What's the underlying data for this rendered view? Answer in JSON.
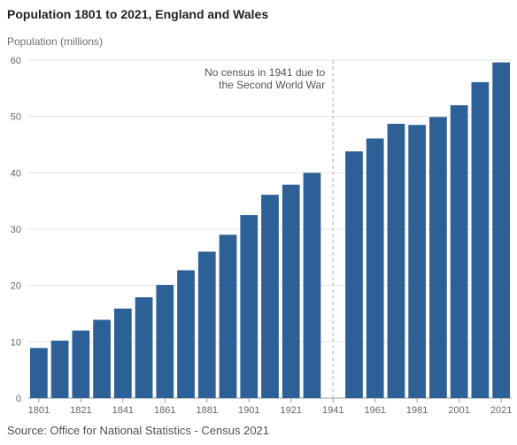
{
  "chart_data": {
    "type": "bar",
    "title": "Population 1801 to 2021, England and Wales",
    "ylabel": "Population (millions)",
    "xlabel": "",
    "ylim": [
      0,
      60
    ],
    "yticks": [
      0,
      10,
      20,
      30,
      40,
      50,
      60
    ],
    "grid": true,
    "color": "#2c6096",
    "categories": [
      "1801",
      "1811",
      "1821",
      "1831",
      "1841",
      "1851",
      "1861",
      "1871",
      "1881",
      "1891",
      "1901",
      "1911",
      "1921",
      "1931",
      "1941",
      "1951",
      "1961",
      "1971",
      "1981",
      "1991",
      "2001",
      "2011",
      "2021"
    ],
    "x_tick_labels": [
      "1801",
      "1821",
      "1841",
      "1861",
      "1881",
      "1901",
      "1921",
      "1941",
      "1961",
      "1981",
      "2001",
      "2021"
    ],
    "values": [
      8.9,
      10.2,
      12.0,
      13.9,
      15.9,
      17.9,
      20.1,
      22.7,
      26.0,
      29.0,
      32.5,
      36.1,
      37.9,
      40.0,
      null,
      43.8,
      46.1,
      48.7,
      48.5,
      49.9,
      52.0,
      56.1,
      59.6
    ],
    "annotation": {
      "category": "1941",
      "lines": [
        "No census in 1941 due to",
        "the Second World War"
      ]
    }
  },
  "source": "Source: Office for National Statistics - Census 2021"
}
